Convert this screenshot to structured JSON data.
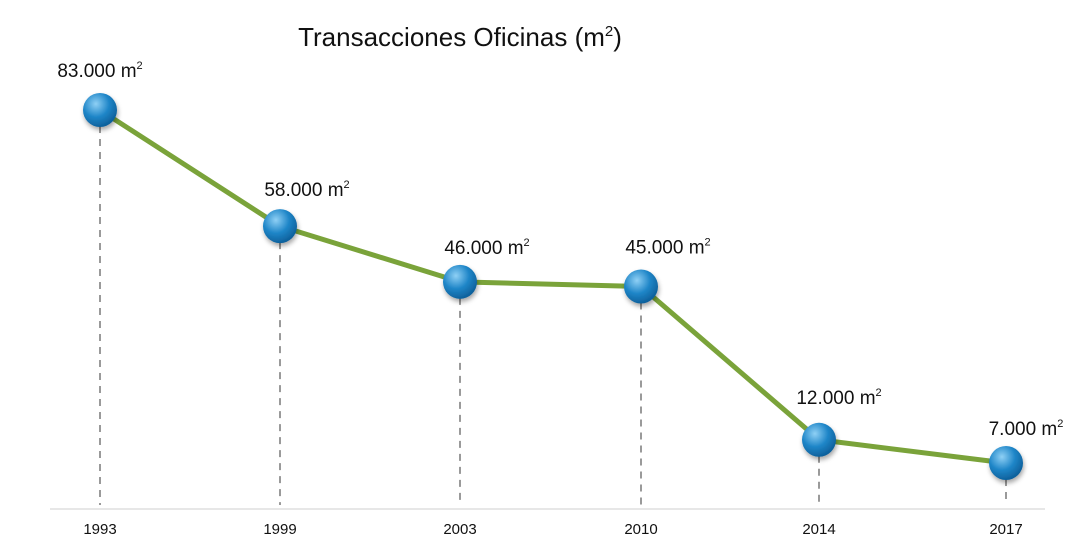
{
  "chart_data": {
    "type": "line",
    "title": "Transacciones Oficinas (m",
    "title_sup": "2",
    "title_close": ")",
    "x": [
      "1993",
      "1999",
      "2003",
      "2010",
      "2014",
      "2017"
    ],
    "values": [
      83000,
      58000,
      46000,
      45000,
      12000,
      7000
    ],
    "data_labels": [
      "83.000 m",
      "58.000 m",
      "46.000 m",
      "45.000 m",
      "12.000 m",
      "7.000 m"
    ],
    "label_sup": "2",
    "ylim": [
      0,
      100000
    ],
    "grid": false,
    "legend": "none",
    "colors": {
      "line": "#7aa33a",
      "marker": "#1f86c8",
      "marker_highlight": "#8fd0f5",
      "marker_dark": "#0d5f9a",
      "dropline": "#9a9a9a",
      "axis": "#cfcfcf"
    }
  }
}
